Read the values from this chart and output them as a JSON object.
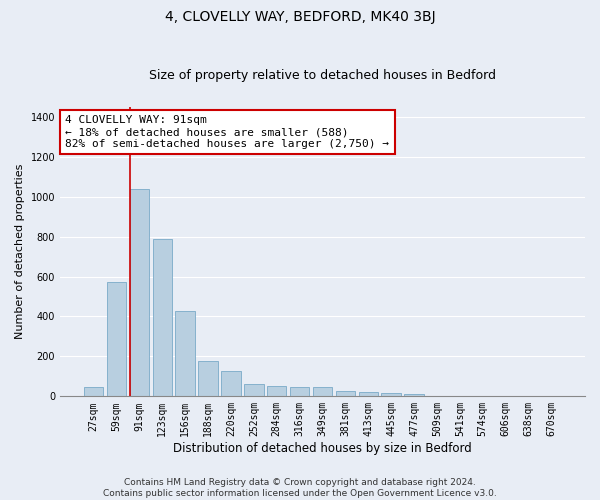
{
  "title": "4, CLOVELLY WAY, BEDFORD, MK40 3BJ",
  "subtitle": "Size of property relative to detached houses in Bedford",
  "xlabel": "Distribution of detached houses by size in Bedford",
  "ylabel": "Number of detached properties",
  "categories": [
    "27sqm",
    "59sqm",
    "91sqm",
    "123sqm",
    "156sqm",
    "188sqm",
    "220sqm",
    "252sqm",
    "284sqm",
    "316sqm",
    "349sqm",
    "381sqm",
    "413sqm",
    "445sqm",
    "477sqm",
    "509sqm",
    "541sqm",
    "574sqm",
    "606sqm",
    "638sqm",
    "670sqm"
  ],
  "values": [
    47,
    575,
    1040,
    790,
    425,
    175,
    125,
    62,
    50,
    48,
    48,
    28,
    22,
    15,
    10,
    0,
    0,
    0,
    0,
    0,
    0
  ],
  "bar_color": "#b8cfe0",
  "bar_edge_color": "#7aaac8",
  "highlight_index": 2,
  "highlight_line_color": "#cc0000",
  "annotation_text": "4 CLOVELLY WAY: 91sqm\n← 18% of detached houses are smaller (588)\n82% of semi-detached houses are larger (2,750) →",
  "annotation_box_color": "#ffffff",
  "annotation_box_edge_color": "#cc0000",
  "ylim": [
    0,
    1450
  ],
  "yticks": [
    0,
    200,
    400,
    600,
    800,
    1000,
    1200,
    1400
  ],
  "bg_color": "#e8edf5",
  "plot_bg_color": "#e8edf5",
  "grid_color": "#ffffff",
  "footer_text": "Contains HM Land Registry data © Crown copyright and database right 2024.\nContains public sector information licensed under the Open Government Licence v3.0.",
  "title_fontsize": 10,
  "subtitle_fontsize": 9,
  "xlabel_fontsize": 8.5,
  "ylabel_fontsize": 8,
  "tick_fontsize": 7,
  "annotation_fontsize": 8,
  "footer_fontsize": 6.5
}
